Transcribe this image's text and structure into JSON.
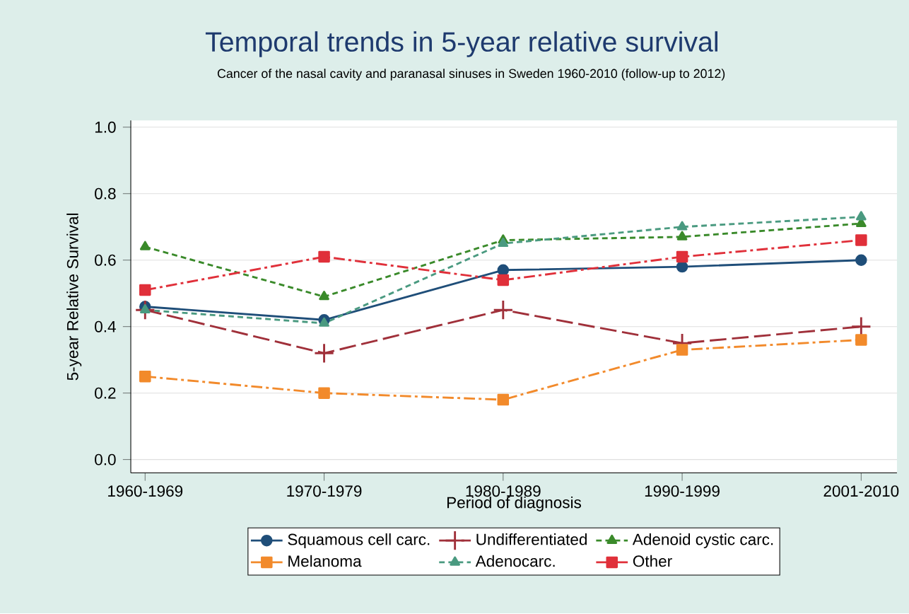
{
  "chart_data": {
    "type": "line",
    "title": "Temporal trends in 5-year relative survival",
    "subtitle": "Cancer of the nasal cavity and paranasal sinuses in Sweden 1960-2010 (follow-up to 2012)",
    "xlabel": "Period of diagnosis",
    "ylabel": "5-year Relative Survival",
    "categories": [
      "1960-1969",
      "1970-1979",
      "1980-1989",
      "1990-1999",
      "2001-2010"
    ],
    "series": [
      {
        "name": "Squamous cell carc.",
        "color": "#1f4e79",
        "marker": "circle",
        "line_style": "solid",
        "values": [
          0.46,
          0.42,
          0.57,
          0.58,
          0.6
        ]
      },
      {
        "name": "Undifferentiated",
        "color": "#a0303a",
        "marker": "cross",
        "line_style": "dashed",
        "values": [
          0.45,
          0.32,
          0.45,
          0.35,
          0.4
        ]
      },
      {
        "name": "Adenoid cystic carc.",
        "color": "#3a8a2a",
        "marker": "triangle",
        "line_style": "dotted",
        "values": [
          0.64,
          0.49,
          0.66,
          0.67,
          0.71
        ]
      },
      {
        "name": "Melanoma",
        "color": "#f28a2b",
        "marker": "square",
        "line_style": "dashdot",
        "values": [
          0.25,
          0.2,
          0.18,
          0.33,
          0.36
        ]
      },
      {
        "name": "Adenocarc.",
        "color": "#4a9a80",
        "marker": "triangle",
        "line_style": "dotted",
        "values": [
          0.45,
          0.41,
          0.65,
          0.7,
          0.73
        ]
      },
      {
        "name": "Other",
        "color": "#e0303a",
        "marker": "square",
        "line_style": "dashdot",
        "values": [
          0.51,
          0.61,
          0.54,
          0.61,
          0.66
        ]
      }
    ],
    "ylim": [
      -0.04,
      1.02
    ],
    "yticks": [
      {
        "value": 0,
        "label": "0.0"
      },
      {
        "value": 0.2,
        "label": "0.2"
      },
      {
        "value": 0.4,
        "label": "0.4"
      },
      {
        "value": 0.6,
        "label": "0.6"
      },
      {
        "value": 0.8,
        "label": "0.8"
      },
      {
        "value": 1,
        "label": "1.0"
      }
    ],
    "grid": "y",
    "legend": "bottom"
  }
}
